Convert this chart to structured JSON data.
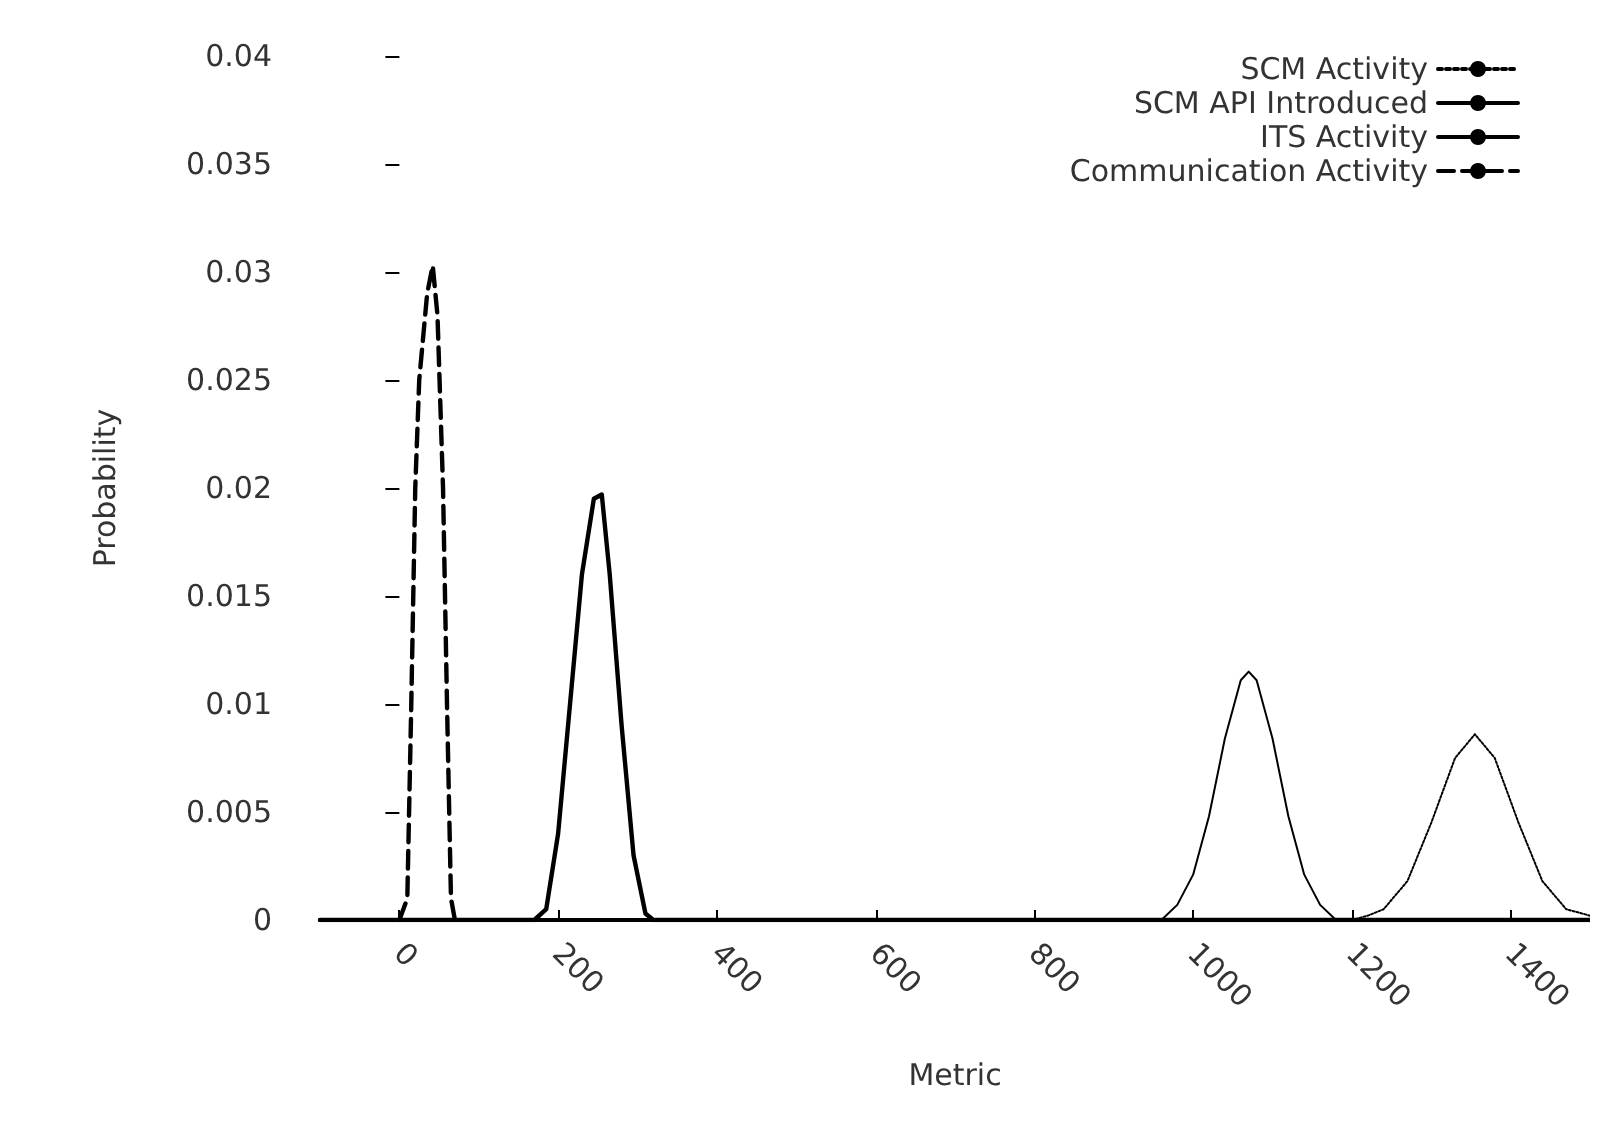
{
  "chart_data": {
    "type": "line",
    "xlabel": "Metric",
    "ylabel": "Probability",
    "xlim": [
      -100,
      1500
    ],
    "ylim": [
      0,
      0.04
    ],
    "xticks": [
      0,
      200,
      400,
      600,
      800,
      1000,
      1200,
      1400
    ],
    "yticks": [
      0,
      0.005,
      0.01,
      0.015,
      0.02,
      0.025,
      0.03,
      0.035,
      0.04
    ],
    "grid": false,
    "legend": "top right",
    "marker": "none",
    "series": [
      {
        "name": "SCM Activity",
        "color": "#000000",
        "line_style": "dotted",
        "x": [
          1200,
          1220,
          1240,
          1270,
          1300,
          1330,
          1355,
          1380,
          1410,
          1440,
          1470,
          1500
        ],
        "values": [
          0,
          0.0002,
          0.0005,
          0.0018,
          0.0045,
          0.0075,
          0.0086,
          0.0075,
          0.0045,
          0.0018,
          0.0005,
          0.0002
        ]
      },
      {
        "name": "SCM API Introduced",
        "color": "#000000",
        "line_style": "solid",
        "x": [
          -100,
          960,
          980,
          1000,
          1020,
          1040,
          1060,
          1070,
          1080,
          1100,
          1120,
          1140,
          1160,
          1180,
          1500
        ],
        "values": [
          0,
          0,
          0.0007,
          0.0021,
          0.0048,
          0.0084,
          0.0111,
          0.0115,
          0.0111,
          0.0084,
          0.0048,
          0.0021,
          0.0007,
          0,
          0
        ]
      },
      {
        "name": "ITS Activity",
        "color": "#000000",
        "line_style": "solid",
        "x": [
          -100,
          170,
          185,
          200,
          215,
          230,
          245,
          255,
          265,
          280,
          295,
          310,
          320,
          1500
        ],
        "values": [
          0,
          0,
          0.0005,
          0.004,
          0.01,
          0.016,
          0.0195,
          0.0197,
          0.016,
          0.009,
          0.003,
          0.0003,
          0,
          0
        ]
      },
      {
        "name": "Communication Activity",
        "color": "#000000",
        "line_style": "dashed",
        "x": [
          0,
          10,
          15,
          20,
          25,
          35,
          42,
          48,
          55,
          60,
          65,
          70
        ],
        "values": [
          0,
          0.001,
          0.01,
          0.02,
          0.025,
          0.029,
          0.0303,
          0.028,
          0.02,
          0.01,
          0.001,
          0
        ]
      }
    ]
  }
}
